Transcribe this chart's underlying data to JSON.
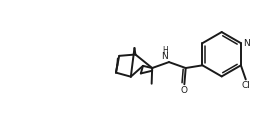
{
  "background_color": "#ffffff",
  "line_color": "#1a1a1a",
  "lw": 1.4,
  "figsize": [
    2.73,
    1.32
  ],
  "dpi": 100,
  "xlim": [
    0,
    10
  ],
  "ylim": [
    0,
    10
  ]
}
